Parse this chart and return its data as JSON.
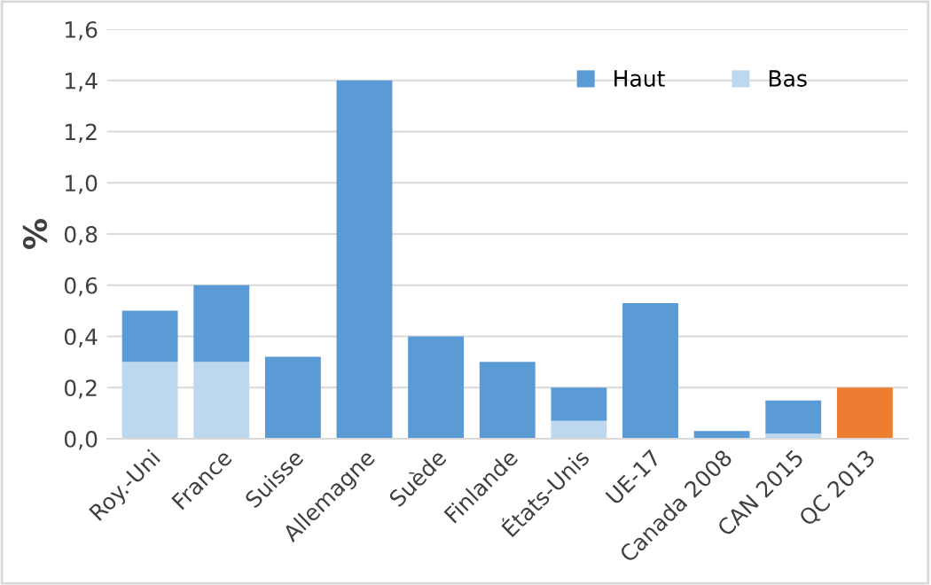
{
  "chart_data": {
    "type": "bar",
    "stacked": true,
    "ylabel": "%",
    "categories": [
      "Roy.-Uni",
      "France",
      "Suisse",
      "Allemagne",
      "Suède",
      "Finlande",
      "États-Unis",
      "UE-17",
      "Canada 2008",
      "CAN 2015",
      "QC 2013"
    ],
    "series": [
      {
        "name": "Bas",
        "color": "#bdd7ee",
        "values": [
          0.3,
          0.3,
          null,
          null,
          null,
          null,
          0.07,
          null,
          null,
          0.02,
          null
        ]
      },
      {
        "name": "Haut",
        "color": "#5b9bd5",
        "colors": [
          "#5b9bd5",
          "#5b9bd5",
          "#5b9bd5",
          "#5b9bd5",
          "#5b9bd5",
          "#5b9bd5",
          "#5b9bd5",
          "#5b9bd5",
          "#5b9bd5",
          "#5b9bd5",
          "#ed7d31"
        ],
        "values": [
          0.2,
          0.3,
          0.32,
          1.4,
          0.4,
          0.3,
          0.13,
          0.53,
          0.03,
          0.13,
          0.2
        ]
      }
    ],
    "ylim": [
      0,
      1.6
    ],
    "yticks": [
      {
        "value": 0,
        "label": "0,0"
      },
      {
        "value": 0.2,
        "label": "0,2"
      },
      {
        "value": 0.4,
        "label": "0,4"
      },
      {
        "value": 0.6,
        "label": "0,6"
      },
      {
        "value": 0.8,
        "label": "0,8"
      },
      {
        "value": 1.0,
        "label": "1,0"
      },
      {
        "value": 1.2,
        "label": "1,2"
      },
      {
        "value": 1.4,
        "label": "1,4"
      },
      {
        "value": 1.6,
        "label": "1,6"
      }
    ],
    "grid": "y",
    "legend": "top right"
  }
}
